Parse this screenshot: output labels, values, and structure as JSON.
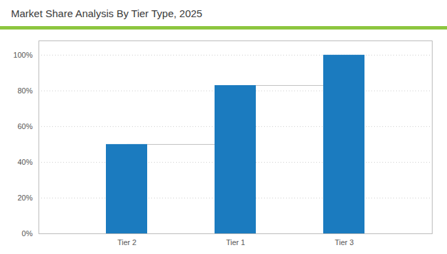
{
  "chart_data": {
    "type": "bar",
    "title": "Market Share Analysis By Tier Type, 2025",
    "categories": [
      "Tier 2",
      "Tier 1",
      "Tier 3"
    ],
    "values": [
      50,
      83,
      100
    ],
    "color": "#1b7bbf",
    "ylim": [
      0,
      108
    ],
    "yticks": [
      {
        "value": 0,
        "label": "0%"
      },
      {
        "value": 20,
        "label": "20%"
      },
      {
        "value": 40,
        "label": "40%"
      },
      {
        "value": 60,
        "label": "60%"
      },
      {
        "value": 80,
        "label": "80%"
      },
      {
        "value": 100,
        "label": "100%"
      }
    ],
    "grid": true
  }
}
